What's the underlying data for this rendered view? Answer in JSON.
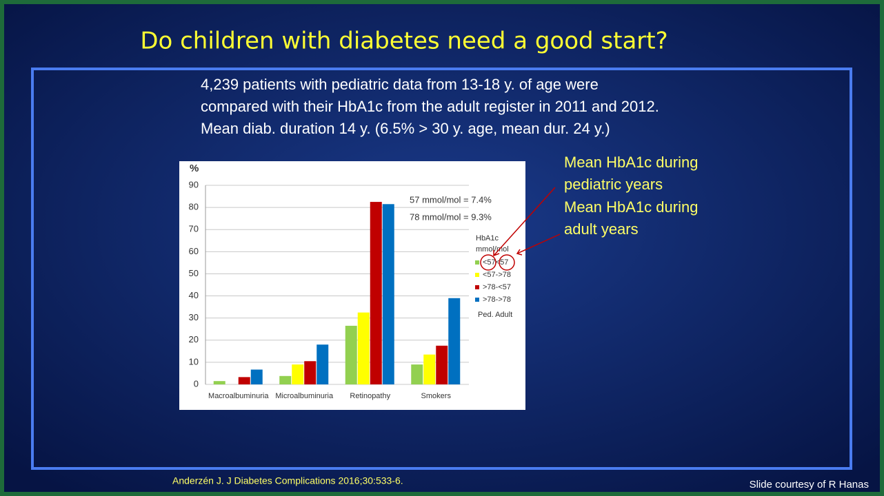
{
  "slide": {
    "title": "Do children with diabetes need a good start?",
    "intro": [
      "4,239 patients with pediatric data from 13-18 y. of age were",
      "compared with their HbA1c from the adult register in 2011 and 2012.",
      "Mean diab. duration 14 y. (6.5% > 30 y. age, mean dur. 24 y.)"
    ],
    "callout_pediatric": [
      "Mean HbA1c during",
      "pediatric years"
    ],
    "callout_adult": [
      "Mean HbA1c during",
      "adult years"
    ],
    "citation": "Anderzén J.  J Diabetes Complications 2016;30:533-6.",
    "credit": "Slide courtesy of R Hanas"
  },
  "chart_data": {
    "type": "bar",
    "y_label": "%",
    "categories": [
      "Macroalbuminuria",
      "Microalbuminuria",
      "Retinopathy",
      "Smokers"
    ],
    "series": [
      {
        "name": "<57<57",
        "color": "#92d050",
        "values": [
          1.5,
          3.8,
          26.5,
          9
        ]
      },
      {
        "name": "<57->78",
        "color": "#ffff00",
        "values": [
          0,
          9,
          32.5,
          13.5
        ]
      },
      {
        "name": ">78-<57",
        "color": "#c00000",
        "values": [
          3.3,
          10.5,
          82.5,
          17.5
        ]
      },
      {
        "name": ">78->78",
        "color": "#0070c0",
        "values": [
          6.7,
          18,
          81.5,
          39
        ]
      }
    ],
    "ylim": [
      0,
      90
    ],
    "yticks": [
      0,
      10,
      20,
      30,
      40,
      50,
      60,
      70,
      80,
      90
    ],
    "grid": true,
    "legend_title": [
      "HbA1c",
      "mmol/mol"
    ],
    "legend_footer": "Ped. Adult",
    "annotations": [
      "57 mmol/mol = 7.4%",
      "78 mmol/mol = 9.3%"
    ]
  }
}
